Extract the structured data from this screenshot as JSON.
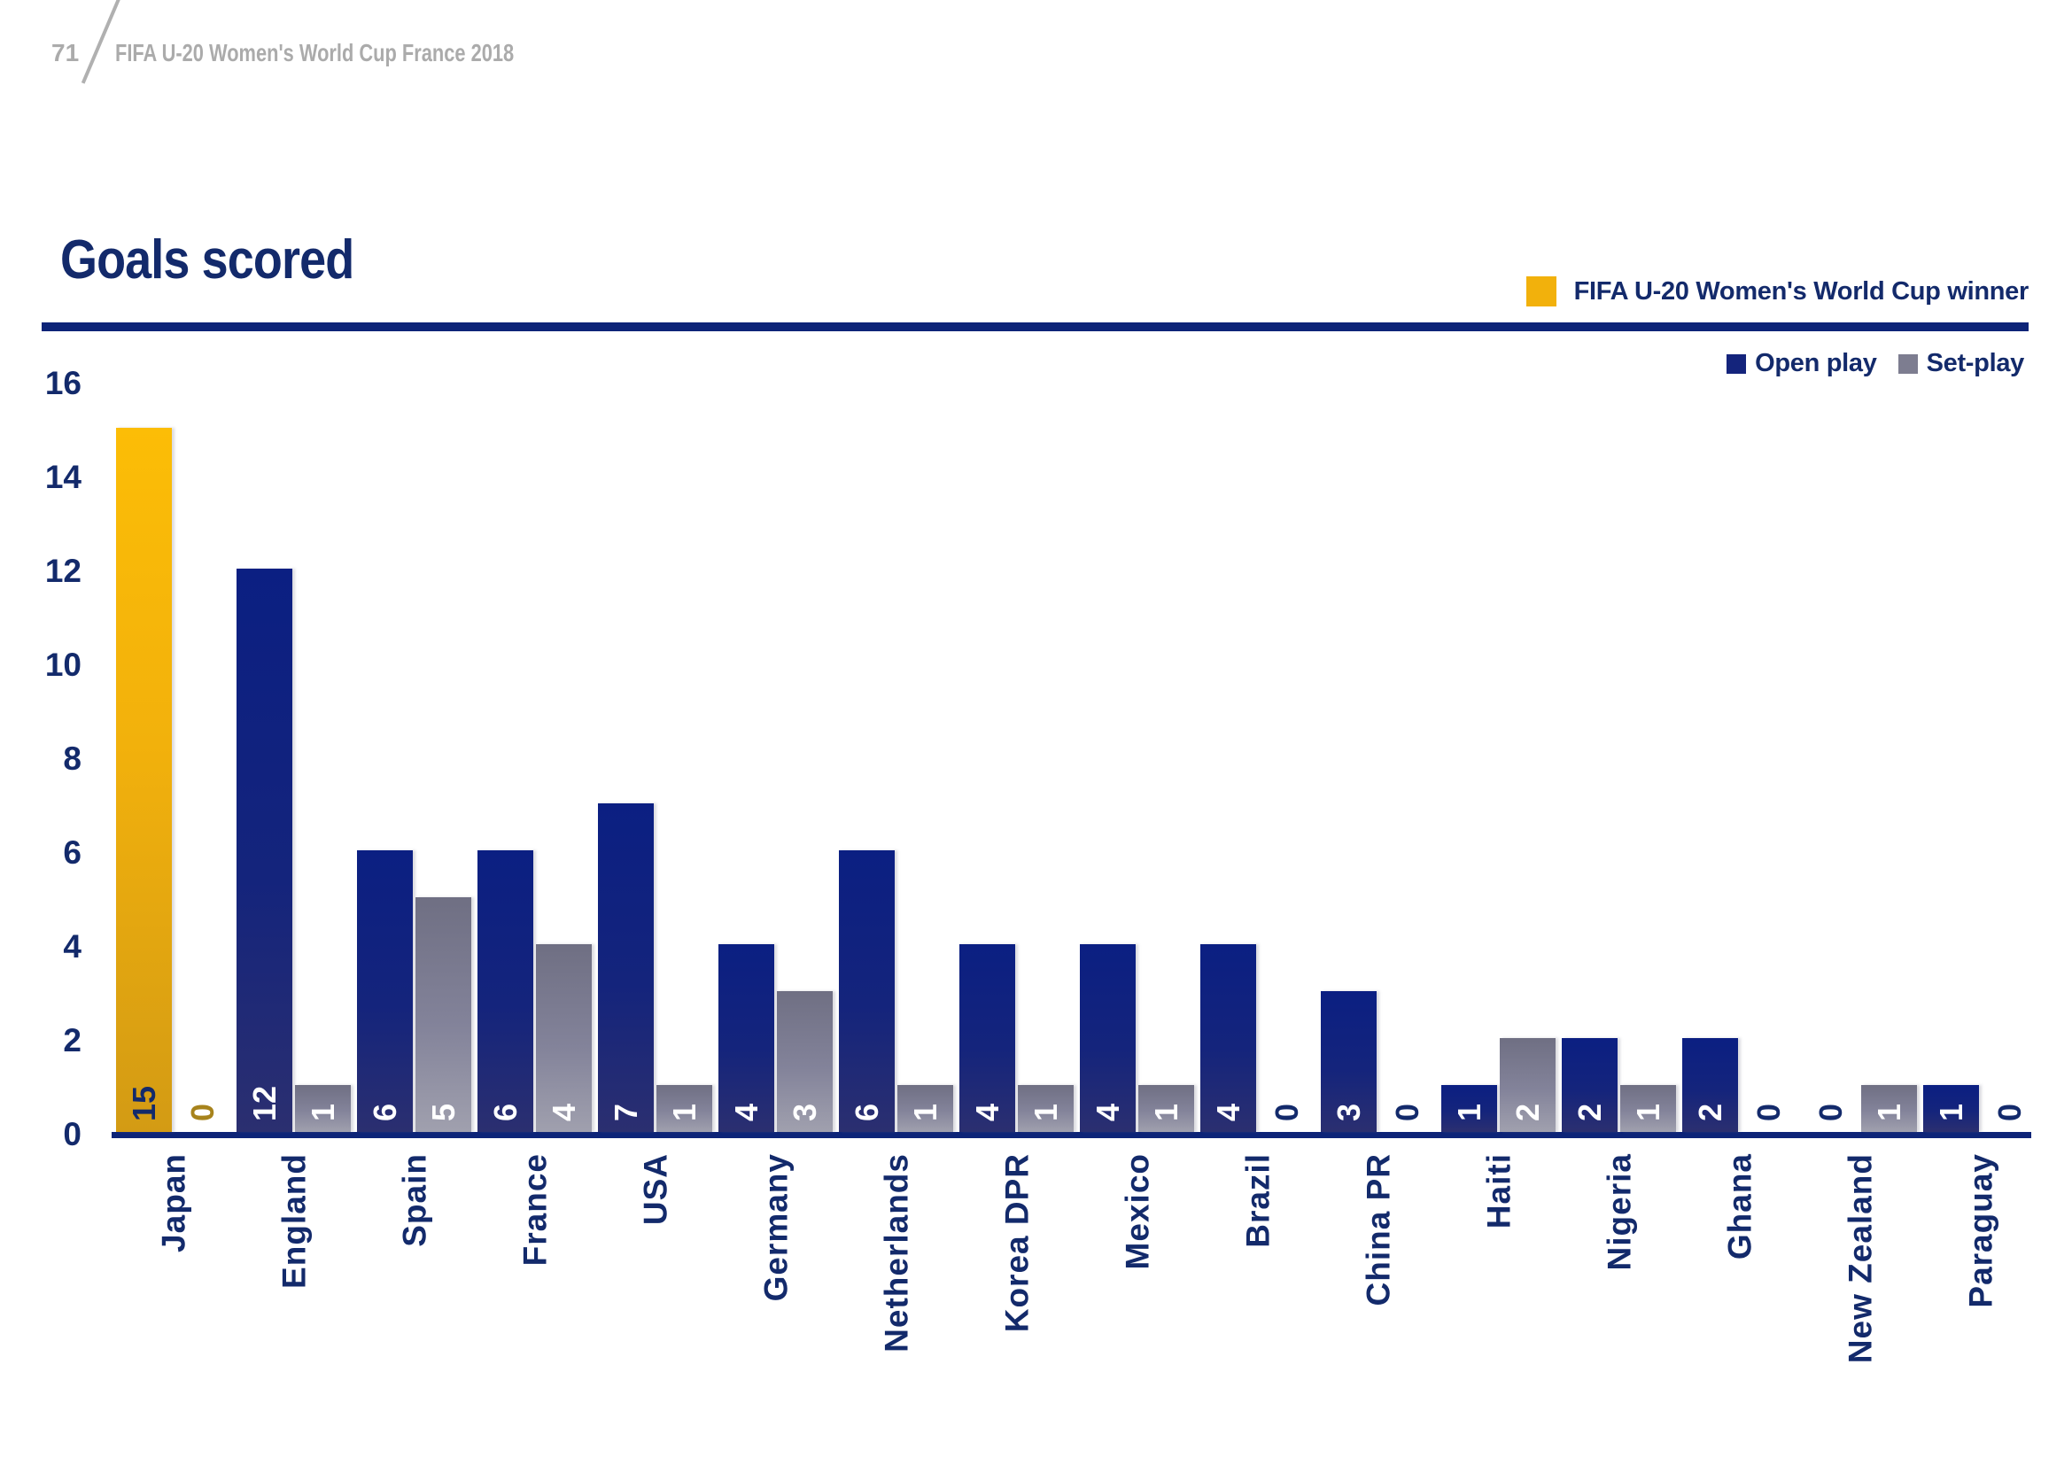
{
  "header": {
    "page_number": "71",
    "title": "FIFA U-20 Women's World Cup France 2018"
  },
  "title": "Goals scored",
  "legend": {
    "winner_label": "FIFA U-20 Women's World Cup winner",
    "open_play_label": "Open play",
    "set_play_label": "Set-play"
  },
  "colors": {
    "navy_text": "#132a6b",
    "open_play_bar": "#14247c",
    "set_play_bar": "#83839a",
    "winner_bar_gold": "#f2b10c",
    "winner_zero_label": "#a7831c",
    "axis_line": "#0d2478",
    "header_gray": "#ababab",
    "background": "#ffffff"
  },
  "chart_data": {
    "type": "bar",
    "title": "Goals scored",
    "categories": [
      "Japan",
      "England",
      "Spain",
      "France",
      "USA",
      "Germany",
      "Netherlands",
      "Korea DPR",
      "Mexico",
      "Brazil",
      "China PR",
      "Haiti",
      "Nigeria",
      "Ghana",
      "New Zealand",
      "Paraguay"
    ],
    "series": [
      {
        "name": "Open play",
        "values": [
          15,
          12,
          6,
          6,
          7,
          4,
          6,
          4,
          4,
          4,
          3,
          1,
          2,
          2,
          0,
          1
        ]
      },
      {
        "name": "Set-play",
        "values": [
          0,
          1,
          5,
          4,
          1,
          3,
          1,
          1,
          1,
          0,
          0,
          2,
          1,
          0,
          1,
          0
        ]
      }
    ],
    "highlight": {
      "category": "Japan",
      "series": "Open play",
      "label": "FIFA U-20 Women's World Cup winner"
    },
    "ylim": [
      0,
      16
    ],
    "ytick_step": 2,
    "grid": false,
    "legend_position": "top-right",
    "bar_value_label_rotation": -90,
    "category_label_rotation": -90
  }
}
